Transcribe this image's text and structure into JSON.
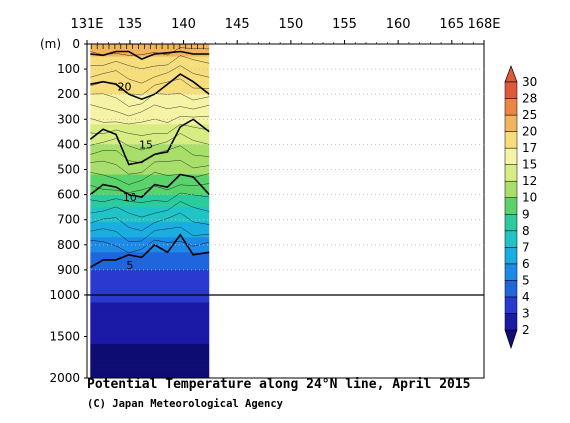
{
  "chart_data": {
    "type": "heatmap",
    "title": "Potential Temperature along 24°N line, April 2015",
    "credit": "(C) Japan Meteorological Agency",
    "y_unit_label": "(m)",
    "x_ticks": [
      "131E",
      "135",
      "140",
      "145",
      "150",
      "155",
      "160",
      "165",
      "168E"
    ],
    "x_tick_values": [
      131,
      135,
      140,
      145,
      150,
      155,
      160,
      165,
      168
    ],
    "xlim": [
      131,
      168
    ],
    "upper_y_ticks": [
      "0",
      "100",
      "200",
      "300",
      "400",
      "500",
      "600",
      "700",
      "800",
      "900",
      "1000"
    ],
    "upper_y_values": [
      0,
      100,
      200,
      300,
      400,
      500,
      600,
      700,
      800,
      900,
      1000
    ],
    "lower_y_ticks": [
      "1500",
      "2000"
    ],
    "lower_y_values": [
      1500,
      2000
    ],
    "ylim": [
      0,
      2000
    ],
    "data_extent_lon": [
      131.3,
      142.4
    ],
    "colorbar_labels": [
      "2",
      "3",
      "4",
      "5",
      "6",
      "7",
      "8",
      "9",
      "10",
      "12",
      "15",
      "17",
      "20",
      "25",
      "28",
      "30"
    ],
    "colorbar_levels": [
      2,
      3,
      4,
      5,
      6,
      7,
      8,
      9,
      10,
      12,
      15,
      17,
      20,
      25,
      28,
      30
    ],
    "colorbar_colors": [
      "#0d0d73",
      "#1a1aa6",
      "#2a3ad0",
      "#1f66dd",
      "#1e8ae8",
      "#1aaee0",
      "#21c3c7",
      "#2bcb9e",
      "#5ad36a",
      "#a8df6a",
      "#d8ec84",
      "#f5f4a6",
      "#f7de7d",
      "#f2b45c",
      "#ea8646",
      "#e0583a"
    ],
    "contour_labels": [
      "20",
      "15",
      "10",
      "5"
    ],
    "contour_label_values": [
      20,
      15,
      10,
      5
    ],
    "isotherms": [
      {
        "t": 5,
        "depths": [
          890,
          860,
          860,
          840,
          850,
          800,
          830,
          760,
          840,
          830
        ]
      },
      {
        "t": 10,
        "depths": [
          600,
          560,
          570,
          600,
          610,
          560,
          570,
          520,
          530,
          600
        ]
      },
      {
        "t": 15,
        "depths": [
          380,
          340,
          360,
          480,
          470,
          440,
          430,
          330,
          300,
          350
        ]
      },
      {
        "t": 20,
        "depths": [
          160,
          150,
          160,
          200,
          220,
          200,
          160,
          120,
          150,
          200
        ]
      },
      {
        "t": 25,
        "depths": [
          40,
          45,
          30,
          30,
          60,
          40,
          35,
          30,
          40,
          40
        ]
      }
    ],
    "isotherm_lons": [
      131.3,
      132.5,
      133.7,
      134.9,
      136.1,
      137.3,
      138.5,
      139.7,
      140.9,
      142.4
    ]
  }
}
